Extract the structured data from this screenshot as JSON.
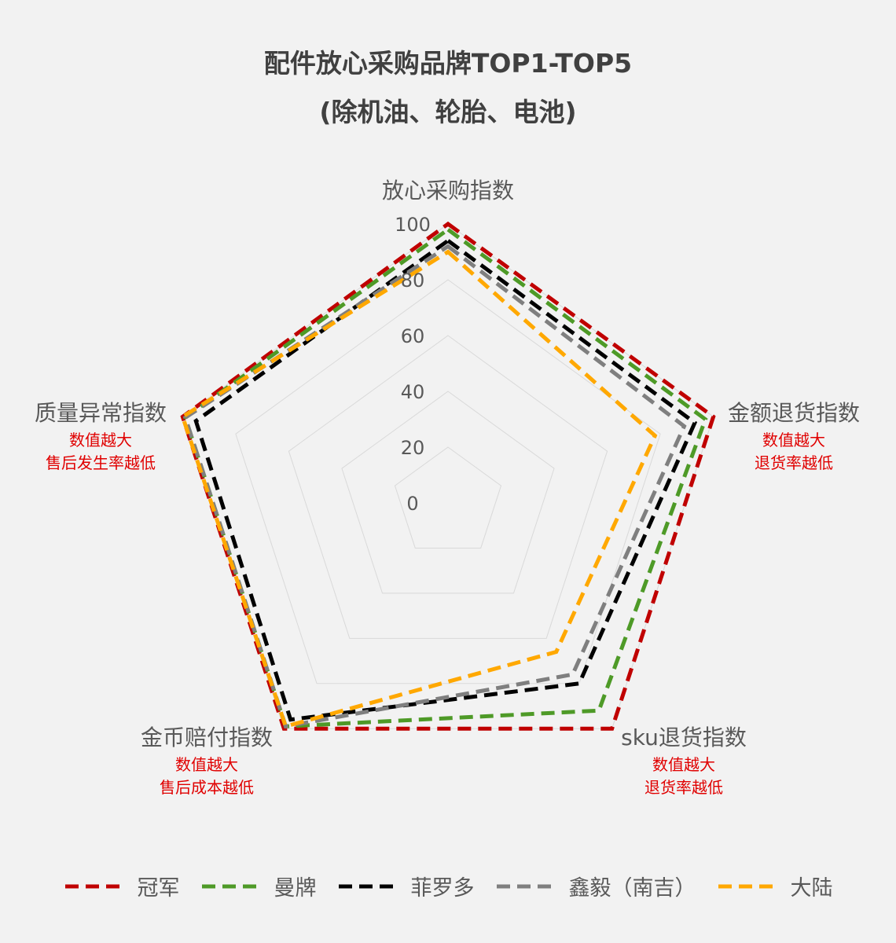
{
  "title": "配件放心采购品牌TOP1-TOP5",
  "subtitle": "(除机油、轮胎、电池)",
  "chart_data": {
    "type": "radar",
    "title": "配件放心采购品牌TOP1-TOP5",
    "subtitle": "(除机油、轮胎、电池)",
    "axes": [
      {
        "name": "放心采购指数",
        "notes": []
      },
      {
        "name": "金额退货指数",
        "notes": [
          "数值越大",
          "退货率越低"
        ]
      },
      {
        "name": "sku退货指数",
        "notes": [
          "数值越大",
          "退货率越低"
        ]
      },
      {
        "name": "金币赔付指数",
        "notes": [
          "数值越大",
          "售后成本越低"
        ]
      },
      {
        "name": "质量异常指数",
        "notes": [
          "数值越大",
          "售后发生率越低"
        ]
      }
    ],
    "rlim": [
      0,
      100
    ],
    "ticks": [
      0,
      20,
      40,
      60,
      80,
      100
    ],
    "grid": true,
    "legend_position": "bottom",
    "series": [
      {
        "name": "冠军",
        "color": "#c00000",
        "values": [
          100,
          100,
          100,
          100,
          100
        ]
      },
      {
        "name": "曼牌",
        "color": "#4e9a27",
        "values": [
          98,
          97,
          92,
          99,
          99
        ]
      },
      {
        "name": "菲罗多",
        "color": "#000000",
        "values": [
          94,
          93,
          80,
          96,
          95
        ]
      },
      {
        "name": "鑫毅（南吉）",
        "color": "#7f7f7f",
        "values": [
          92,
          89,
          76,
          99,
          99
        ]
      },
      {
        "name": "大陆",
        "color": "#ffa800",
        "values": [
          90,
          78,
          66,
          99,
          100
        ]
      }
    ]
  }
}
